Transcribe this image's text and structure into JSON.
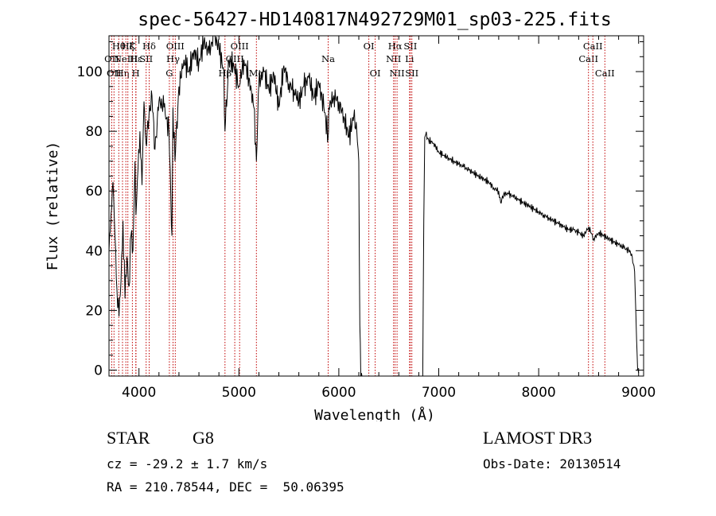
{
  "chart_data": {
    "type": "line",
    "title": "spec-56427-HD140817N492729M01_sp03-225.fits",
    "xlabel": "Wavelength (Å)",
    "ylabel": "Flux (relative)",
    "xlim": [
      3700,
      9050
    ],
    "ylim": [
      -2,
      112
    ],
    "xticks": [
      4000,
      5000,
      6000,
      7000,
      8000,
      9000
    ],
    "yticks": [
      0,
      20,
      40,
      60,
      80,
      100
    ],
    "grid": false,
    "series": [
      {
        "name": "flux",
        "x": [
          3700,
          3720,
          3740,
          3760,
          3780,
          3800,
          3820,
          3840,
          3860,
          3880,
          3900,
          3920,
          3940,
          3960,
          3970,
          3990,
          4010,
          4030,
          4050,
          4070,
          4100,
          4130,
          4160,
          4200,
          4250,
          4300,
          4330,
          4340,
          4360,
          4400,
          4450,
          4500,
          4550,
          4600,
          4650,
          4700,
          4750,
          4800,
          4850,
          4861,
          4900,
          4950,
          5000,
          5050,
          5100,
          5150,
          5175,
          5200,
          5250,
          5300,
          5350,
          5400,
          5450,
          5500,
          5550,
          5600,
          5650,
          5700,
          5750,
          5800,
          5850,
          5893,
          5900,
          5950,
          6000,
          6050,
          6100,
          6150,
          6180,
          6200,
          6210,
          6220,
          6800,
          6840,
          6850,
          6860,
          6870,
          6900,
          6950,
          7000,
          7050,
          7100,
          7150,
          7200,
          7250,
          7300,
          7350,
          7400,
          7450,
          7500,
          7550,
          7600,
          7620,
          7650,
          7700,
          7750,
          7800,
          7850,
          7900,
          7950,
          8000,
          8050,
          8100,
          8150,
          8200,
          8250,
          8300,
          8350,
          8400,
          8450,
          8500,
          8550,
          8600,
          8650,
          8700,
          8750,
          8800,
          8850,
          8900,
          8930,
          8960,
          8980,
          8990,
          9000
        ],
        "values": [
          40,
          52,
          63,
          45,
          27,
          18,
          30,
          50,
          24,
          38,
          28,
          45,
          40,
          70,
          52,
          67,
          80,
          62,
          90,
          76,
          85,
          92,
          74,
          90,
          88,
          80,
          45,
          88,
          70,
          95,
          104,
          100,
          107,
          103,
          110,
          106,
          112,
          108,
          100,
          80,
          104,
          102,
          95,
          104,
          98,
          88,
          70,
          96,
          100,
          94,
          99,
          88,
          102,
          96,
          94,
          90,
          95,
          98,
          91,
          96,
          88,
          78,
          88,
          92,
          90,
          85,
          78,
          85,
          80,
          70,
          15,
          -2,
          -2,
          -2,
          50,
          78,
          79,
          77,
          76,
          73,
          72,
          71,
          70,
          69,
          68,
          67,
          66,
          65,
          64,
          63,
          61,
          60,
          56,
          59,
          59,
          58,
          57,
          56,
          55,
          54,
          53,
          52,
          51,
          50,
          49,
          48,
          47,
          47,
          46,
          45,
          48,
          44,
          46,
          45,
          44,
          43,
          42,
          41,
          40,
          39,
          33,
          10,
          0,
          -1
        ]
      }
    ],
    "line_markers": [
      {
        "wavelength": 3727,
        "label": "OII",
        "row": 2
      },
      {
        "wavelength": 3750,
        "label": "OII",
        "row": 3
      },
      {
        "wavelength": 3798,
        "label": "Hθ",
        "row": 1
      },
      {
        "wavelength": 3835,
        "label": "Hη",
        "row": 3
      },
      {
        "wavelength": 3869,
        "label": "NeIII",
        "row": 2
      },
      {
        "wavelength": 3889,
        "label": "Hζ",
        "row": 1
      },
      {
        "wavelength": 3934,
        "label": "K",
        "row": 1
      },
      {
        "wavelength": 3968,
        "label": "H",
        "row": 3
      },
      {
        "wavelength": 3970,
        "label": "Hε",
        "row": 2
      },
      {
        "wavelength": 4072,
        "label": "SII",
        "row": 2
      },
      {
        "wavelength": 4102,
        "label": "Hδ",
        "row": 1
      },
      {
        "wavelength": 4304,
        "label": "G",
        "row": 3
      },
      {
        "wavelength": 4341,
        "label": "Hγ",
        "row": 2
      },
      {
        "wavelength": 4363,
        "label": "OIII",
        "row": 1
      },
      {
        "wavelength": 4861,
        "label": "Hβ",
        "row": 3
      },
      {
        "wavelength": 4959,
        "label": "OIII",
        "row": 2
      },
      {
        "wavelength": 5007,
        "label": "OIII",
        "row": 1
      },
      {
        "wavelength": 5175,
        "label": "Mg",
        "row": 3
      },
      {
        "wavelength": 5893,
        "label": "Na",
        "row": 2
      },
      {
        "wavelength": 6300,
        "label": "OI",
        "row": 1
      },
      {
        "wavelength": 6364,
        "label": "OI",
        "row": 3
      },
      {
        "wavelength": 6548,
        "label": "NII",
        "row": 2
      },
      {
        "wavelength": 6563,
        "label": "Hα",
        "row": 1
      },
      {
        "wavelength": 6583,
        "label": "NII",
        "row": 3
      },
      {
        "wavelength": 6708,
        "label": "Li",
        "row": 2
      },
      {
        "wavelength": 6716,
        "label": "SII",
        "row": 1
      },
      {
        "wavelength": 6731,
        "label": "SII",
        "row": 3
      },
      {
        "wavelength": 8498,
        "label": "CaII",
        "row": 2
      },
      {
        "wavelength": 8542,
        "label": "CaII",
        "row": 1
      },
      {
        "wavelength": 8662,
        "label": "CaII",
        "row": 3
      }
    ]
  },
  "info": {
    "object_type": "STAR",
    "subclass": "G8",
    "survey": "LAMOST DR3",
    "redshift": "cz = -29.2 ± 1.7 km/s",
    "obs_date": "Obs-Date: 20130514",
    "coords": "RA = 210.78544, DEC =  50.06395"
  },
  "colors": {
    "line_marker": "#c00000",
    "spectrum": "#000000",
    "background": "#ffffff"
  }
}
